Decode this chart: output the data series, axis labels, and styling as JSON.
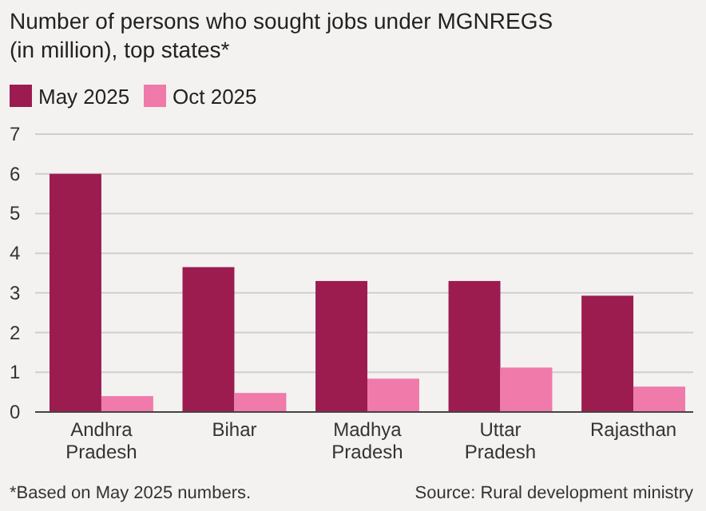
{
  "chart_data": {
    "type": "bar",
    "title": "Number of persons who sought jobs under MGNREGS (in million), top states*",
    "categories": [
      "Andhra Pradesh",
      "Bihar",
      "Madhya Pradesh",
      "Uttar Pradesh",
      "Rajasthan"
    ],
    "series": [
      {
        "name": "May 2025",
        "color": "#9c1c50",
        "values": [
          6.0,
          3.65,
          3.3,
          3.3,
          2.93
        ]
      },
      {
        "name": "Oct 2025",
        "color": "#f07aaa",
        "values": [
          0.4,
          0.48,
          0.84,
          1.12,
          0.64
        ]
      }
    ],
    "ylim": [
      0,
      7
    ],
    "yticks": [
      0,
      1,
      2,
      3,
      4,
      5,
      6,
      7
    ],
    "grid": "y",
    "legend": "top left",
    "annotations": [
      "*Based on May 2025 numbers.",
      "Source: Rural development ministry"
    ]
  }
}
